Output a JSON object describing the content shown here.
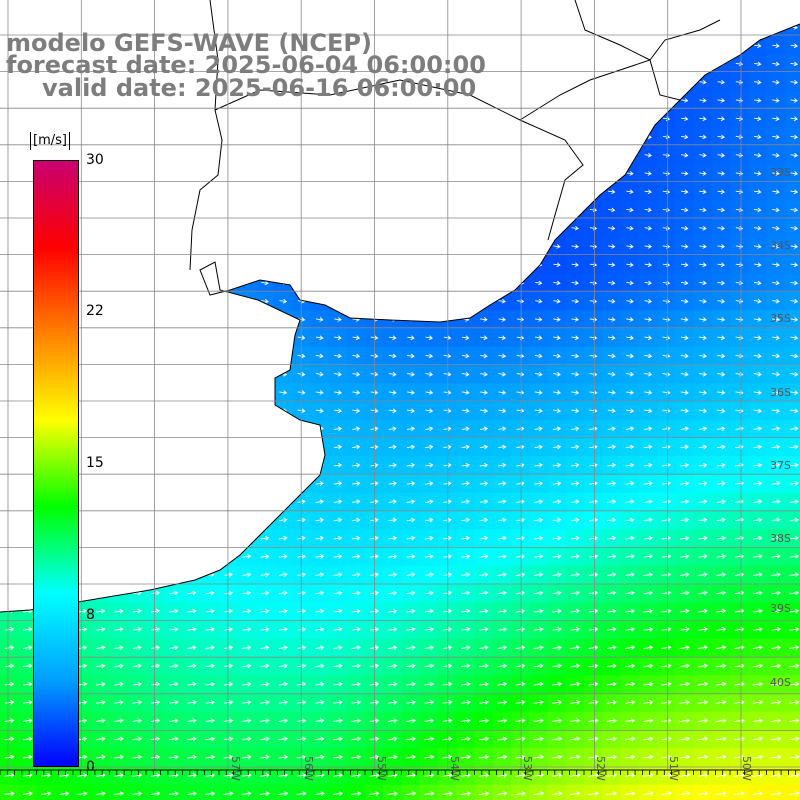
{
  "title": {
    "line1": "modelo GEFS-WAVE (NCEP)",
    "line2": "forecast date: 2025-06-04 06:00:00",
    "line3": "valid date: 2025-06-16 06:00:00"
  },
  "colorbar": {
    "unit": "[m/s]",
    "min": 0,
    "max": 30,
    "tick_labels": [
      "30",
      "22",
      "15",
      "8",
      "0"
    ],
    "colors": [
      "#0000ff",
      "#00a0ff",
      "#00ffff",
      "#00ff00",
      "#ffff00",
      "#ff8000",
      "#ff0000",
      "#c80070"
    ]
  },
  "map": {
    "lat_labels": [
      "33S",
      "34S",
      "35S",
      "36S",
      "37S",
      "38S",
      "39S",
      "40S"
    ],
    "lon_labels": [
      "57W",
      "56W",
      "55W",
      "54W",
      "53W",
      "52W",
      "51W",
      "50W"
    ],
    "land_color": "#ffffff",
    "coast_color": "#000000",
    "grid_color": "#888888"
  }
}
